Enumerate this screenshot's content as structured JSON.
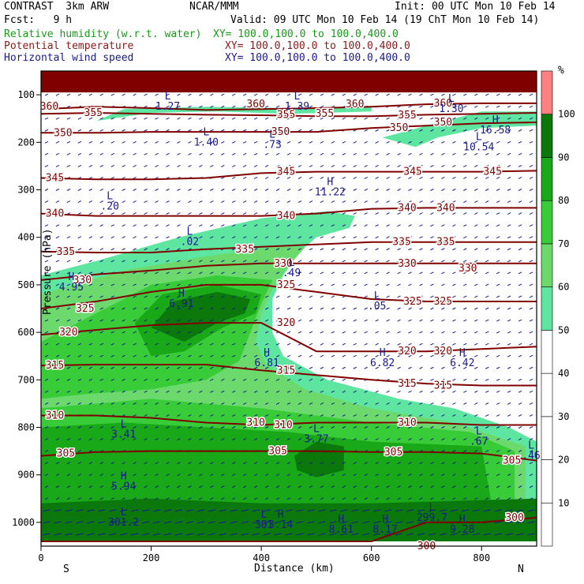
{
  "header": {
    "model": "CONTRAST  3km ARW",
    "org": "NCAR/MMM",
    "init": "Init: 00 UTC Mon 10 Feb 14",
    "fcst": "Fcst:   9 h",
    "valid": "Valid: 09 UTC Mon 10 Feb 14 (19 ChT Mon 10 Feb 14)",
    "fields": [
      {
        "name": "Relative humidity (w.r.t. water)",
        "xy": "XY= 100.0,100.0 to 100.0,400.0",
        "color": "#1a9a1a"
      },
      {
        "name": "Potential temperature",
        "xy": "XY= 100.0,100.0 to 100.0,400.0",
        "color": "#8b1a1a"
      },
      {
        "name": "Horizontal wind speed",
        "xy": "XY= 100.0,100.0 to 100.0,400.0",
        "color": "#1a1a8b"
      }
    ]
  },
  "chart_data": {
    "type": "heatmap",
    "xlabel": "Distance (km)",
    "ylabel": "Pressure (hPa)",
    "xlim": [
      0,
      900
    ],
    "ylim": [
      1050,
      50
    ],
    "x_ticks": [
      "0",
      "200",
      "400",
      "600",
      "800"
    ],
    "y_ticks": [
      "100",
      "200",
      "300",
      "400",
      "500",
      "600",
      "700",
      "800",
      "900",
      "1000"
    ],
    "x_end_labels": {
      "left": "S",
      "right": "N"
    },
    "colorbar": {
      "unit": "%",
      "levels": [
        "10",
        "20",
        "30",
        "40",
        "50",
        "60",
        "70",
        "80",
        "90",
        "100"
      ],
      "colors": [
        "#ffffff",
        "#ffffff",
        "#ffffff",
        "#ffffff",
        "#ffffff",
        "#5ee6a0",
        "#6cd96c",
        "#38cc38",
        "#18a818",
        "#0a780a",
        "#ff8080"
      ]
    },
    "theta_contours": [
      {
        "value": "360",
        "p": [
          130,
          125,
          128,
          132,
          130,
          128,
          125,
          120,
          118,
          118
        ]
      },
      {
        "value": "355",
        "p": [
          140,
          138,
          140,
          142,
          143,
          145,
          145,
          142,
          140,
          138
        ]
      },
      {
        "value": "350",
        "p": [
          180,
          180,
          178,
          178,
          178,
          178,
          170,
          165,
          160,
          158
        ]
      },
      {
        "value": "345",
        "p": [
          275,
          278,
          278,
          275,
          265,
          262,
          262,
          262,
          262,
          260
        ]
      },
      {
        "value": "340",
        "p": [
          350,
          355,
          355,
          355,
          355,
          350,
          340,
          338,
          338,
          338
        ]
      },
      {
        "value": "335",
        "p": [
          430,
          432,
          432,
          425,
          420,
          415,
          410,
          410,
          410,
          410
        ]
      },
      {
        "value": "330",
        "p": [
          490,
          478,
          470,
          460,
          455,
          455,
          455,
          455,
          455,
          455
        ]
      },
      {
        "value": "325",
        "p": [
          550,
          535,
          515,
          500,
          500,
          515,
          530,
          535,
          535,
          535
        ]
      },
      {
        "value": "320",
        "p": [
          605,
          595,
          585,
          580,
          580,
          640,
          640,
          640,
          635,
          630
        ]
      },
      {
        "value": "315",
        "p": [
          670,
          668,
          668,
          668,
          680,
          690,
          700,
          708,
          712,
          712
        ]
      },
      {
        "value": "310",
        "p": [
          775,
          775,
          780,
          790,
          795,
          790,
          790,
          790,
          795,
          795
        ]
      },
      {
        "value": "305",
        "p": [
          860,
          852,
          850,
          850,
          850,
          850,
          852,
          852,
          855,
          870
        ]
      },
      {
        "value": "300",
        "p": [
          1040,
          1040,
          1040,
          1040,
          1040,
          1040,
          1040,
          1000,
          1000,
          990
        ]
      }
    ],
    "theta_labels": [
      {
        "text": "360",
        "x": 15,
        "p": 125
      },
      {
        "text": "360",
        "x": 390,
        "p": 120
      },
      {
        "text": "360",
        "x": 570,
        "p": 120
      },
      {
        "text": "360",
        "x": 730,
        "p": 118
      },
      {
        "text": "355",
        "x": 95,
        "p": 138
      },
      {
        "text": "355",
        "x": 445,
        "p": 142
      },
      {
        "text": "355",
        "x": 515,
        "p": 140
      },
      {
        "text": "355",
        "x": 665,
        "p": 143
      },
      {
        "text": "350",
        "x": 40,
        "p": 180
      },
      {
        "text": "350",
        "x": 435,
        "p": 178
      },
      {
        "text": "350",
        "x": 650,
        "p": 170
      },
      {
        "text": "350",
        "x": 730,
        "p": 158
      },
      {
        "text": "345",
        "x": 25,
        "p": 275
      },
      {
        "text": "345",
        "x": 445,
        "p": 262
      },
      {
        "text": "345",
        "x": 675,
        "p": 262
      },
      {
        "text": "345",
        "x": 820,
        "p": 262
      },
      {
        "text": "340",
        "x": 25,
        "p": 350
      },
      {
        "text": "340",
        "x": 445,
        "p": 355
      },
      {
        "text": "340",
        "x": 665,
        "p": 338
      },
      {
        "text": "340",
        "x": 735,
        "p": 338
      },
      {
        "text": "335",
        "x": 45,
        "p": 430
      },
      {
        "text": "335",
        "x": 370,
        "p": 425
      },
      {
        "text": "335",
        "x": 655,
        "p": 410
      },
      {
        "text": "335",
        "x": 735,
        "p": 410
      },
      {
        "text": "330",
        "x": 75,
        "p": 490
      },
      {
        "text": "330",
        "x": 440,
        "p": 455
      },
      {
        "text": "330",
        "x": 665,
        "p": 455
      },
      {
        "text": "330",
        "x": 775,
        "p": 465
      },
      {
        "text": "325",
        "x": 80,
        "p": 550
      },
      {
        "text": "325",
        "x": 445,
        "p": 500
      },
      {
        "text": "325",
        "x": 675,
        "p": 535
      },
      {
        "text": "325",
        "x": 730,
        "p": 535
      },
      {
        "text": "320",
        "x": 50,
        "p": 600
      },
      {
        "text": "320",
        "x": 445,
        "p": 580
      },
      {
        "text": "320",
        "x": 665,
        "p": 640
      },
      {
        "text": "320",
        "x": 730,
        "p": 640
      },
      {
        "text": "315",
        "x": 25,
        "p": 670
      },
      {
        "text": "315",
        "x": 445,
        "p": 680
      },
      {
        "text": "315",
        "x": 665,
        "p": 708
      },
      {
        "text": "315",
        "x": 730,
        "p": 712
      },
      {
        "text": "310",
        "x": 25,
        "p": 775
      },
      {
        "text": "310",
        "x": 390,
        "p": 790
      },
      {
        "text": "310",
        "x": 440,
        "p": 795
      },
      {
        "text": "310",
        "x": 665,
        "p": 790
      },
      {
        "text": "305",
        "x": 45,
        "p": 855
      },
      {
        "text": "305",
        "x": 430,
        "p": 850
      },
      {
        "text": "305",
        "x": 640,
        "p": 852
      },
      {
        "text": "305",
        "x": 855,
        "p": 870
      },
      {
        "text": "300",
        "x": 860,
        "p": 990
      },
      {
        "text": "300",
        "x": 700,
        "p": 1050
      }
    ],
    "extrema": [
      {
        "marker": "L",
        "text": "1.27",
        "x": 230,
        "p": 110
      },
      {
        "marker": "L",
        "text": "1.39",
        "x": 465,
        "p": 110
      },
      {
        "marker": "L",
        "text": "1.30",
        "x": 745,
        "p": 115
      },
      {
        "marker": "H",
        "text": "16.58",
        "x": 825,
        "p": 160
      },
      {
        "marker": "L",
        "text": "1.40",
        "x": 300,
        "p": 185
      },
      {
        "marker": "L",
        "text": ".73",
        "x": 420,
        "p": 190
      },
      {
        "marker": "L",
        "text": "10.54",
        "x": 795,
        "p": 195
      },
      {
        "marker": "H",
        "text": "11.22",
        "x": 525,
        "p": 290
      },
      {
        "marker": "L",
        "text": ".20",
        "x": 125,
        "p": 320
      },
      {
        "marker": "L",
        "text": ".02",
        "x": 270,
        "p": 395
      },
      {
        "marker": "L",
        "text": ".49",
        "x": 455,
        "p": 460
      },
      {
        "marker": "H",
        "text": "4.95",
        "x": 55,
        "p": 490
      },
      {
        "marker": "H",
        "text": "6.91",
        "x": 255,
        "p": 525
      },
      {
        "marker": "L",
        "text": ".05",
        "x": 610,
        "p": 530
      },
      {
        "marker": "H",
        "text": "6.81",
        "x": 410,
        "p": 650
      },
      {
        "marker": "H",
        "text": "6.82",
        "x": 620,
        "p": 650
      },
      {
        "marker": "H",
        "text": "6.42",
        "x": 765,
        "p": 650
      },
      {
        "marker": "L",
        "text": "3.41",
        "x": 150,
        "p": 800
      },
      {
        "marker": "L",
        "text": "3.77",
        "x": 500,
        "p": 810
      },
      {
        "marker": "L",
        "text": ".67",
        "x": 795,
        "p": 815
      },
      {
        "marker": "L",
        "text": ".46",
        "x": 890,
        "p": 845
      },
      {
        "marker": "H",
        "text": "5.94",
        "x": 150,
        "p": 910
      },
      {
        "marker": "L",
        "text": "301.2",
        "x": 150,
        "p": 985
      },
      {
        "marker": "L",
        "text": "301",
        "x": 405,
        "p": 990
      },
      {
        "marker": "H",
        "text": "3.14",
        "x": 435,
        "p": 990
      },
      {
        "marker": "H",
        "text": "8.61",
        "x": 545,
        "p": 1000
      },
      {
        "marker": "H",
        "text": "8.17",
        "x": 625,
        "p": 1000
      },
      {
        "marker": "L",
        "text": "299.7",
        "x": 710,
        "p": 975
      },
      {
        "marker": "H",
        "text": "9.28",
        "x": 765,
        "p": 1000
      }
    ]
  }
}
